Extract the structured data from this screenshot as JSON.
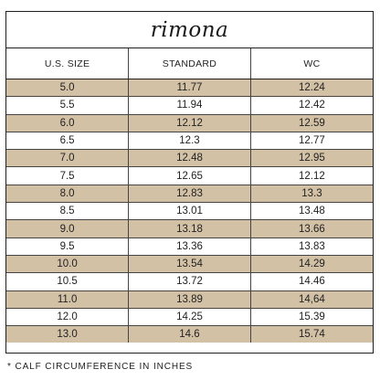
{
  "brand": "rimona",
  "headers": [
    "U.S. SIZE",
    "STANDARD",
    "WC"
  ],
  "rows": [
    [
      "5.0",
      "11.77",
      "12.24"
    ],
    [
      "5.5",
      "11.94",
      "12.42"
    ],
    [
      "6.0",
      "12.12",
      "12.59"
    ],
    [
      "6.5",
      "12.3",
      "12.77"
    ],
    [
      "7.0",
      "12.48",
      "12.95"
    ],
    [
      "7.5",
      "12.65",
      "12.12"
    ],
    [
      "8.0",
      "12.83",
      "13.3"
    ],
    [
      "8.5",
      "13.01",
      "13.48"
    ],
    [
      "9.0",
      "13.18",
      "13.66"
    ],
    [
      "9.5",
      "13.36",
      "13.83"
    ],
    [
      "10.0",
      "13.54",
      "14.29"
    ],
    [
      "10.5",
      "13.72",
      "14.46"
    ],
    [
      "11.0",
      "13.89",
      "14,64"
    ],
    [
      "12.0",
      "14.25",
      "15.39"
    ],
    [
      "13.0",
      "14.6",
      "15.74"
    ]
  ],
  "footnote": "* CALF CIRCUMFERENCE IN INCHES",
  "colors": {
    "shaded_row": "#d3c1a6",
    "border": "#1f1f1f"
  }
}
